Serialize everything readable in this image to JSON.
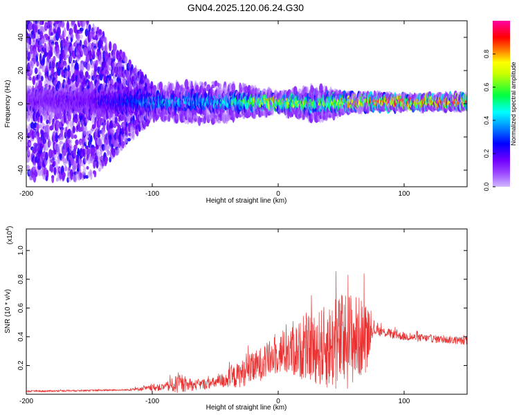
{
  "title": "GN04.2025.120.06.24.G30",
  "chart_data": [
    {
      "type": "heatmap",
      "xlabel": "Height of straight line (km)",
      "ylabel": "Frequency (Hz)",
      "xlim": [
        -200,
        150
      ],
      "ylim": [
        -50,
        50
      ],
      "x_ticks": [
        -200,
        -100,
        0,
        100
      ],
      "y_ticks": [
        -40,
        -20,
        0,
        20,
        40
      ],
      "colorbar": {
        "label": "Normalized spectral amplitude",
        "range": [
          0,
          1
        ],
        "ticks": [
          "0.0",
          "0.2",
          "0.4",
          "0.6",
          "0.8"
        ],
        "colors": [
          "#d0b8ff",
          "#8000ff",
          "#0000ff",
          "#00ffff",
          "#00ff00",
          "#ffff00",
          "#ff8000",
          "#ff0000",
          "#ff00a0"
        ]
      },
      "band": [
        {
          "x": -200,
          "center": 2,
          "halfwidth_core": 6,
          "peak": 0.15,
          "scatter_halfwidth": 48
        },
        {
          "x": -150,
          "center": 2,
          "halfwidth_core": 8,
          "peak": 0.18,
          "scatter_halfwidth": 48
        },
        {
          "x": -100,
          "center": 1,
          "halfwidth_core": 6,
          "peak": 0.4,
          "scatter_halfwidth": 10
        },
        {
          "x": -50,
          "center": 1,
          "halfwidth_core": 5,
          "peak": 0.45,
          "scatter_halfwidth": 12
        },
        {
          "x": 0,
          "center": 1,
          "halfwidth_core": 4,
          "peak": 0.8,
          "scatter_halfwidth": 6
        },
        {
          "x": 30,
          "center": 0,
          "halfwidth_core": 5,
          "peak": 0.6,
          "scatter_halfwidth": 10
        },
        {
          "x": 60,
          "center": 1,
          "halfwidth_core": 4,
          "peak": 0.85,
          "scatter_halfwidth": 5
        },
        {
          "x": 100,
          "center": 1,
          "halfwidth_core": 3,
          "peak": 0.95,
          "scatter_halfwidth": 4
        },
        {
          "x": 150,
          "center": 1,
          "halfwidth_core": 3,
          "peak": 0.9,
          "scatter_halfwidth": 4
        }
      ]
    },
    {
      "type": "line",
      "xlabel": "Height of straight line (km)",
      "ylabel": "SNR (10 * v/v)",
      "y_multiplier": "(x10",
      "y_multiplier_exp": "4",
      "y_multiplier_close": ")",
      "xlim": [
        -200,
        150
      ],
      "ylim": [
        0,
        1.15
      ],
      "x_ticks": [
        -200,
        -100,
        0,
        100
      ],
      "y_ticks": [
        0.2,
        0.4,
        0.6,
        0.8,
        1.0
      ],
      "color": "#e83030",
      "envelope": [
        {
          "x": -200,
          "base": 0.02,
          "amp": 0.01
        },
        {
          "x": -120,
          "base": 0.03,
          "amp": 0.01
        },
        {
          "x": -90,
          "base": 0.05,
          "amp": 0.05
        },
        {
          "x": -80,
          "base": 0.07,
          "amp": 0.12
        },
        {
          "x": -70,
          "base": 0.06,
          "amp": 0.07
        },
        {
          "x": -50,
          "base": 0.08,
          "amp": 0.07
        },
        {
          "x": -35,
          "base": 0.12,
          "amp": 0.15
        },
        {
          "x": -20,
          "base": 0.18,
          "amp": 0.2
        },
        {
          "x": 0,
          "base": 0.28,
          "amp": 0.25
        },
        {
          "x": 25,
          "base": 0.32,
          "amp": 0.42
        },
        {
          "x": 40,
          "base": 0.33,
          "amp": 0.55
        },
        {
          "x": 55,
          "base": 0.38,
          "amp": 0.65
        },
        {
          "x": 70,
          "base": 0.4,
          "amp": 0.45
        },
        {
          "x": 75,
          "base": 0.45,
          "amp": 0.07
        },
        {
          "x": 100,
          "base": 0.4,
          "amp": 0.05
        },
        {
          "x": 150,
          "base": 0.37,
          "amp": 0.05
        }
      ]
    }
  ]
}
